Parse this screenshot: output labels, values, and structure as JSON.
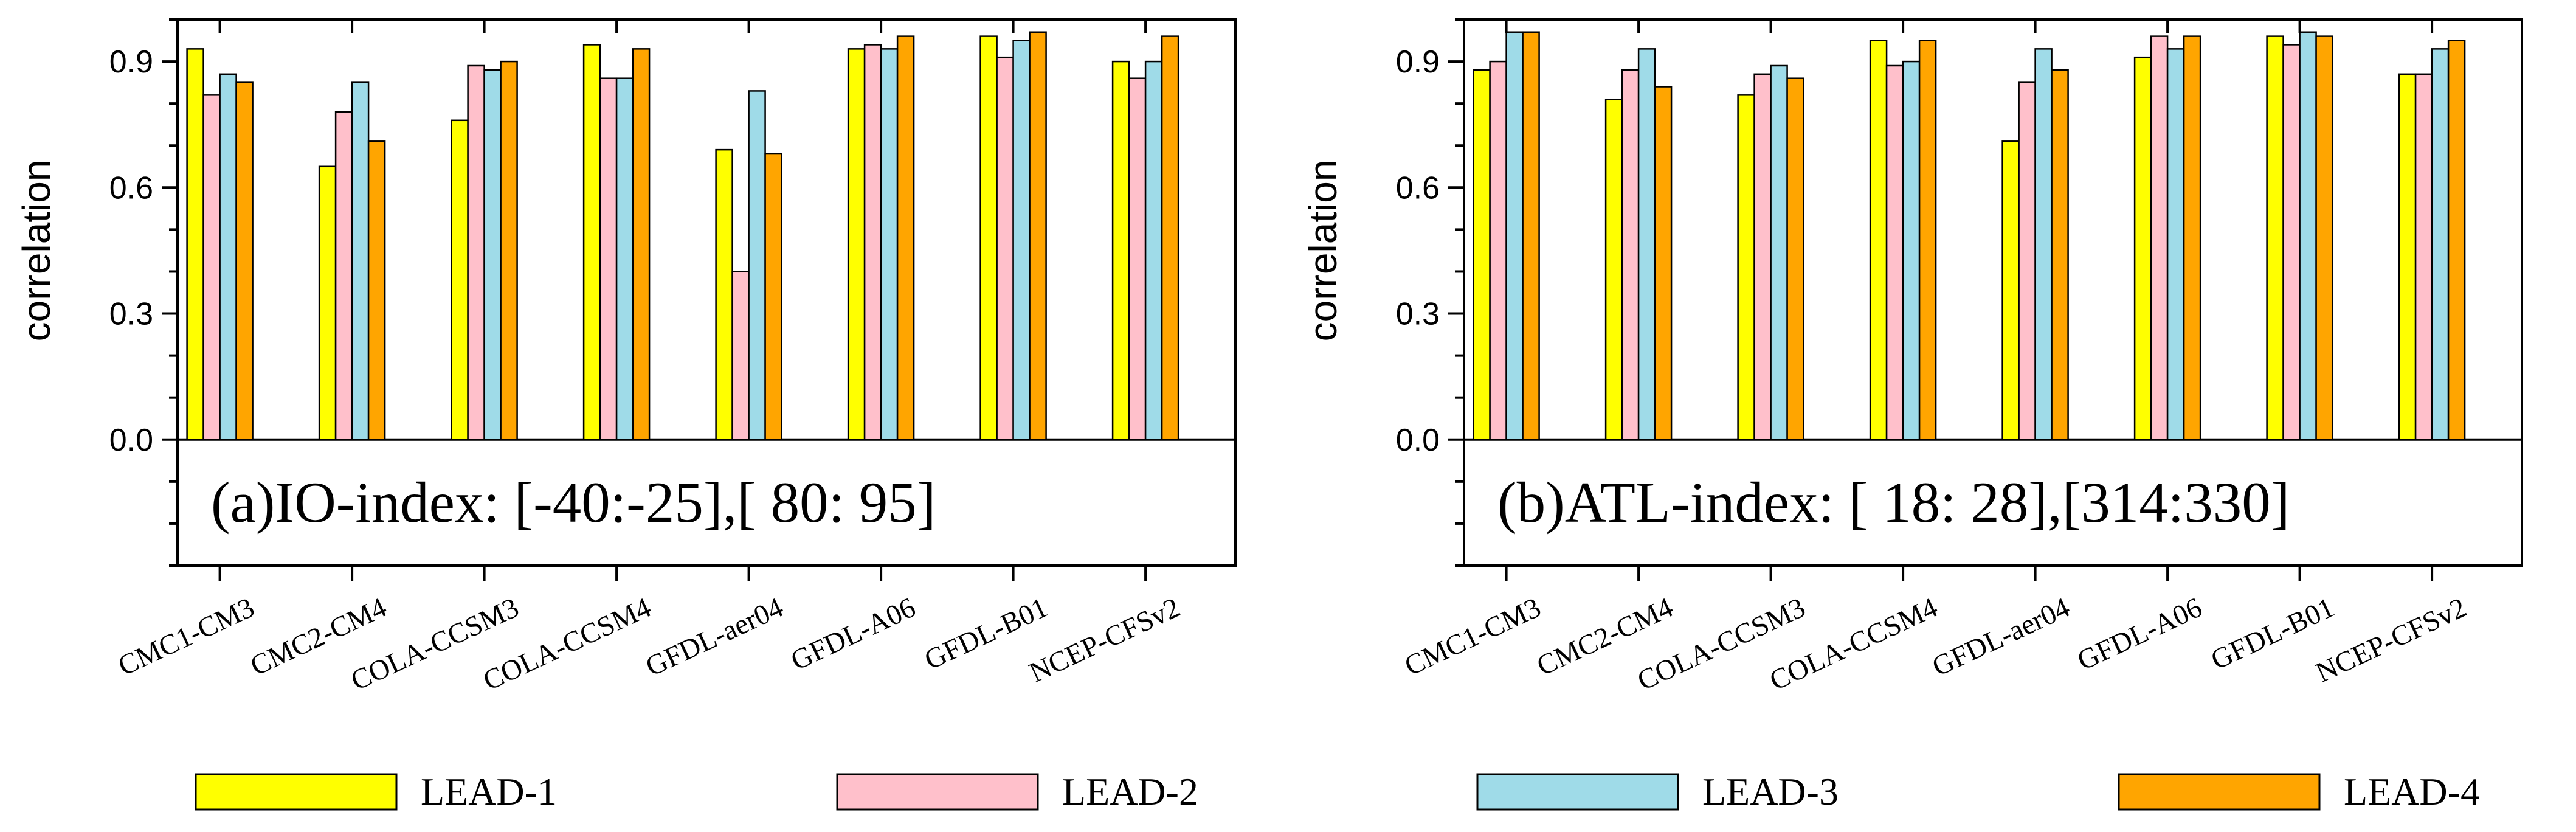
{
  "chart_data": [
    {
      "type": "bar",
      "title": "(a)IO-index: [-40:-25],[ 80: 95]",
      "xlabel": "",
      "ylabel": "correlation",
      "ylim": [
        -0.3,
        1.0
      ],
      "yticks": [
        "0.0",
        "0.3",
        "0.6",
        "0.9"
      ],
      "categories": [
        "CMC1-CM3",
        "CMC2-CM4",
        "COLA-CCSM3",
        "COLA-CCSM4",
        "GFDL-aer04",
        "GFDL-A06",
        "GFDL-B01",
        "NCEP-CFSv2"
      ],
      "series": [
        {
          "name": "LEAD-1",
          "values": [
            0.93,
            0.65,
            0.76,
            0.94,
            0.69,
            0.93,
            0.96,
            0.9
          ]
        },
        {
          "name": "LEAD-2",
          "values": [
            0.82,
            0.78,
            0.89,
            0.86,
            0.4,
            0.94,
            0.91,
            0.86
          ]
        },
        {
          "name": "LEAD-3",
          "values": [
            0.87,
            0.85,
            0.88,
            0.86,
            0.83,
            0.93,
            0.95,
            0.9
          ]
        },
        {
          "name": "LEAD-4",
          "values": [
            0.85,
            0.71,
            0.9,
            0.93,
            0.68,
            0.96,
            0.97,
            0.96
          ]
        }
      ]
    },
    {
      "type": "bar",
      "title": "(b)ATL-index: [ 18: 28],[314:330]",
      "xlabel": "",
      "ylabel": "correlation",
      "ylim": [
        -0.3,
        1.0
      ],
      "yticks": [
        "0.0",
        "0.3",
        "0.6",
        "0.9"
      ],
      "categories": [
        "CMC1-CM3",
        "CMC2-CM4",
        "COLA-CCSM3",
        "COLA-CCSM4",
        "GFDL-aer04",
        "GFDL-A06",
        "GFDL-B01",
        "NCEP-CFSv2"
      ],
      "series": [
        {
          "name": "LEAD-1",
          "values": [
            0.88,
            0.81,
            0.82,
            0.95,
            0.71,
            0.91,
            0.96,
            0.87
          ]
        },
        {
          "name": "LEAD-2",
          "values": [
            0.9,
            0.88,
            0.87,
            0.89,
            0.85,
            0.96,
            0.94,
            0.87
          ]
        },
        {
          "name": "LEAD-3",
          "values": [
            0.97,
            0.93,
            0.89,
            0.9,
            0.93,
            0.93,
            0.97,
            0.93
          ]
        },
        {
          "name": "LEAD-4",
          "values": [
            0.97,
            0.84,
            0.86,
            0.95,
            0.88,
            0.96,
            0.96,
            0.95
          ]
        }
      ]
    }
  ],
  "legend": [
    {
      "label": "LEAD-1",
      "color": "#ffff00"
    },
    {
      "label": "LEAD-2",
      "color": "#ffc0cb"
    },
    {
      "label": "LEAD-3",
      "color": "#9fdbe8"
    },
    {
      "label": "LEAD-4",
      "color": "#ffa500"
    }
  ]
}
